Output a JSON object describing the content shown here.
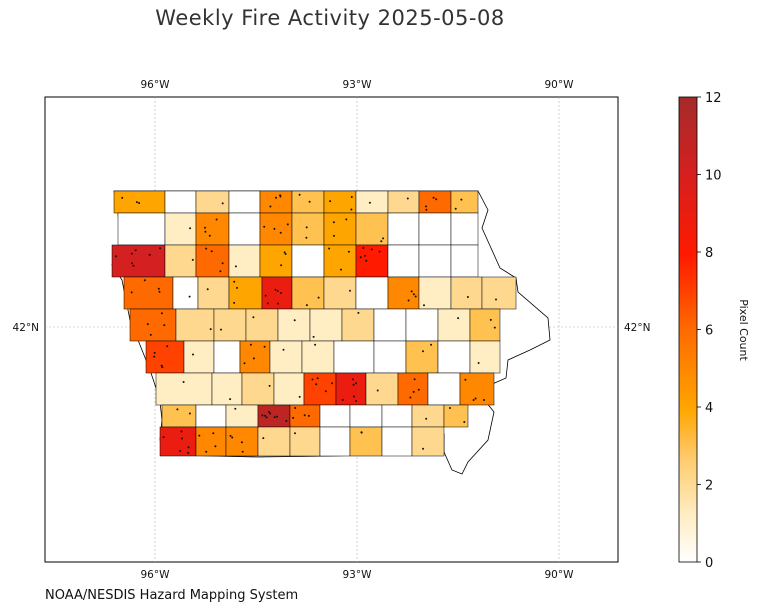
{
  "title": "Weekly Fire Activity 2025-05-08",
  "credit": "NOAA/NESDIS Hazard Mapping System",
  "map": {
    "lon_ticks": [
      "96°W",
      "93°W",
      "90°W"
    ],
    "lat_ticks": [
      "42°N"
    ],
    "gridlines": true
  },
  "colorbar": {
    "label": "Pixel Count",
    "range": [
      0,
      12
    ],
    "ticks": [
      "0",
      "2",
      "4",
      "6",
      "8",
      "10",
      "12"
    ],
    "colors": [
      "#ffffff",
      "#ffe9b8",
      "#ffc04d",
      "#ffa500",
      "#ff6a00",
      "#ff1a00",
      "#c21a1a",
      "#a52a2a"
    ]
  },
  "counties": [
    {
      "row": 0,
      "values": [
        4,
        0,
        2,
        0,
        5,
        3,
        4,
        1,
        2,
        6,
        3
      ]
    },
    {
      "row": 1,
      "values": [
        0,
        1,
        5,
        0,
        5,
        3,
        4,
        3,
        0,
        0,
        0
      ]
    },
    {
      "row": 2,
      "values": [
        10,
        2,
        6,
        1,
        4,
        0,
        4,
        8,
        0,
        0,
        0
      ]
    },
    {
      "row": 3,
      "values": [
        6,
        0,
        2,
        4,
        9,
        3,
        2,
        0,
        5,
        1,
        2,
        2
      ]
    },
    {
      "row": 4,
      "values": [
        6,
        2,
        2,
        2,
        1,
        1,
        2,
        0,
        0,
        1,
        3
      ]
    },
    {
      "row": 5,
      "values": [
        7,
        1,
        0,
        5,
        1,
        1,
        0,
        0,
        3,
        0,
        1
      ]
    },
    {
      "row": 6,
      "values": [
        1,
        1,
        2,
        1,
        7,
        9,
        2,
        6,
        0,
        5,
        1
      ]
    },
    {
      "row": 7,
      "values": [
        3,
        0,
        1,
        11,
        6,
        0,
        0,
        0,
        2,
        3
      ]
    },
    {
      "row": 8,
      "values": [
        9,
        5,
        5,
        2,
        2,
        0,
        3,
        0,
        2
      ]
    }
  ]
}
